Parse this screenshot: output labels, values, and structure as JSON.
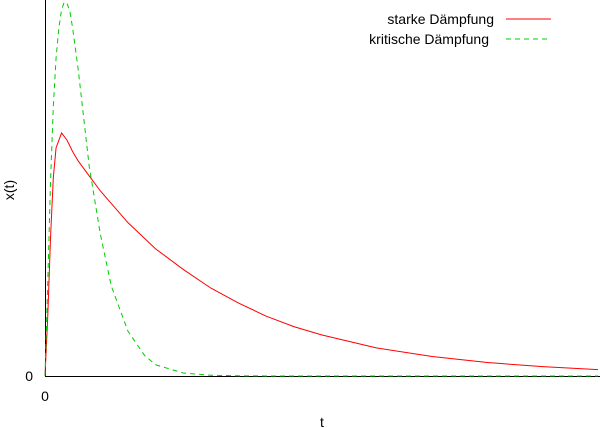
{
  "chart_data": {
    "type": "line",
    "xlabel": "t",
    "ylabel": "x(t)",
    "x_ticks": [
      "0"
    ],
    "y_ticks": [
      "0"
    ],
    "xlim": [
      0,
      10
    ],
    "ylim": [
      0,
      1.0
    ],
    "grid": false,
    "legend_position": "top-right",
    "series": [
      {
        "name": "starke Dämpfung",
        "color": "#ff0000",
        "dash": "solid",
        "x": [
          0,
          0.05,
          0.1,
          0.15,
          0.2,
          0.3,
          0.4,
          0.5,
          0.6,
          0.8,
          1.0,
          1.5,
          2.0,
          2.5,
          3.0,
          3.5,
          4.0,
          4.5,
          5.0,
          6.0,
          7.0,
          8.0,
          9.0,
          10.0
        ],
        "values": [
          0.0,
          0.16,
          0.37,
          0.53,
          0.61,
          0.65,
          0.63,
          0.6,
          0.575,
          0.535,
          0.495,
          0.41,
          0.34,
          0.285,
          0.235,
          0.195,
          0.16,
          0.132,
          0.11,
          0.075,
          0.052,
          0.036,
          0.025,
          0.017
        ]
      },
      {
        "name": "kritische Dämpfung",
        "color": "#00cc00",
        "dash": "dashed",
        "x": [
          0,
          0.05,
          0.1,
          0.15,
          0.2,
          0.25,
          0.3,
          0.35,
          0.4,
          0.45,
          0.5,
          0.6,
          0.7,
          0.8,
          1.0,
          1.2,
          1.5,
          1.8,
          2.0,
          2.5,
          3.0,
          3.5,
          4.0,
          4.5,
          5.0,
          6.0,
          7.0,
          8.0,
          9.0,
          10.0
        ],
        "values": [
          0.0,
          0.25,
          0.52,
          0.72,
          0.85,
          0.93,
          0.98,
          1.0,
          0.995,
          0.975,
          0.93,
          0.82,
          0.69,
          0.56,
          0.38,
          0.24,
          0.12,
          0.055,
          0.03,
          0.008,
          0.002,
          0.0005,
          0.0001,
          0.0,
          0.0,
          0.0,
          0.0,
          0.0,
          0.0,
          0.0
        ]
      }
    ]
  }
}
